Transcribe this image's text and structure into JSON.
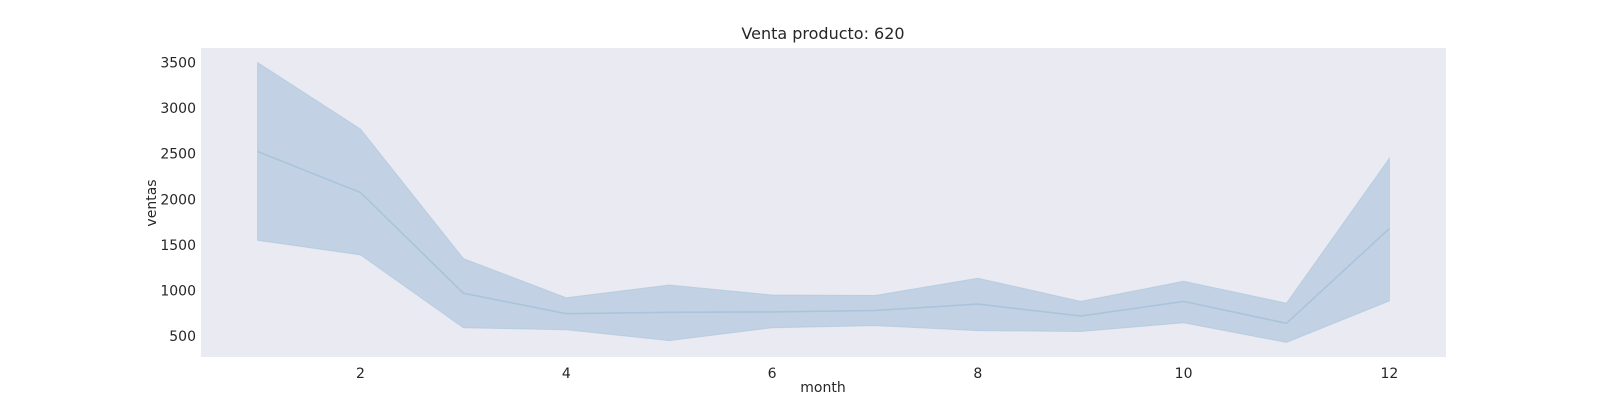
{
  "chart_data": {
    "type": "line",
    "title": "Venta producto: 620",
    "xlabel": "month",
    "ylabel": "ventas",
    "xlim": [
      0.45,
      12.55
    ],
    "ylim": [
      270,
      3660
    ],
    "xticks": [
      2,
      4,
      6,
      8,
      10,
      12
    ],
    "yticks": [
      500,
      1000,
      1500,
      2000,
      2500,
      3000,
      3500
    ],
    "grid": false,
    "background": "#EAEAF2",
    "line_color": "#A9C4DB",
    "band_color": "#C2D2E4",
    "series": [
      {
        "x": [
          1,
          2,
          3,
          4,
          5,
          6,
          7,
          8,
          9,
          10,
          11,
          12
        ],
        "values": [
          2525,
          2075,
          970,
          745,
          760,
          765,
          780,
          850,
          720,
          880,
          640,
          1680
        ],
        "ci_upper": [
          3500,
          2770,
          1350,
          920,
          1060,
          950,
          945,
          1135,
          880,
          1100,
          860,
          2450
        ],
        "ci_lower": [
          1550,
          1390,
          590,
          570,
          450,
          590,
          615,
          560,
          550,
          645,
          430,
          885
        ]
      }
    ]
  }
}
